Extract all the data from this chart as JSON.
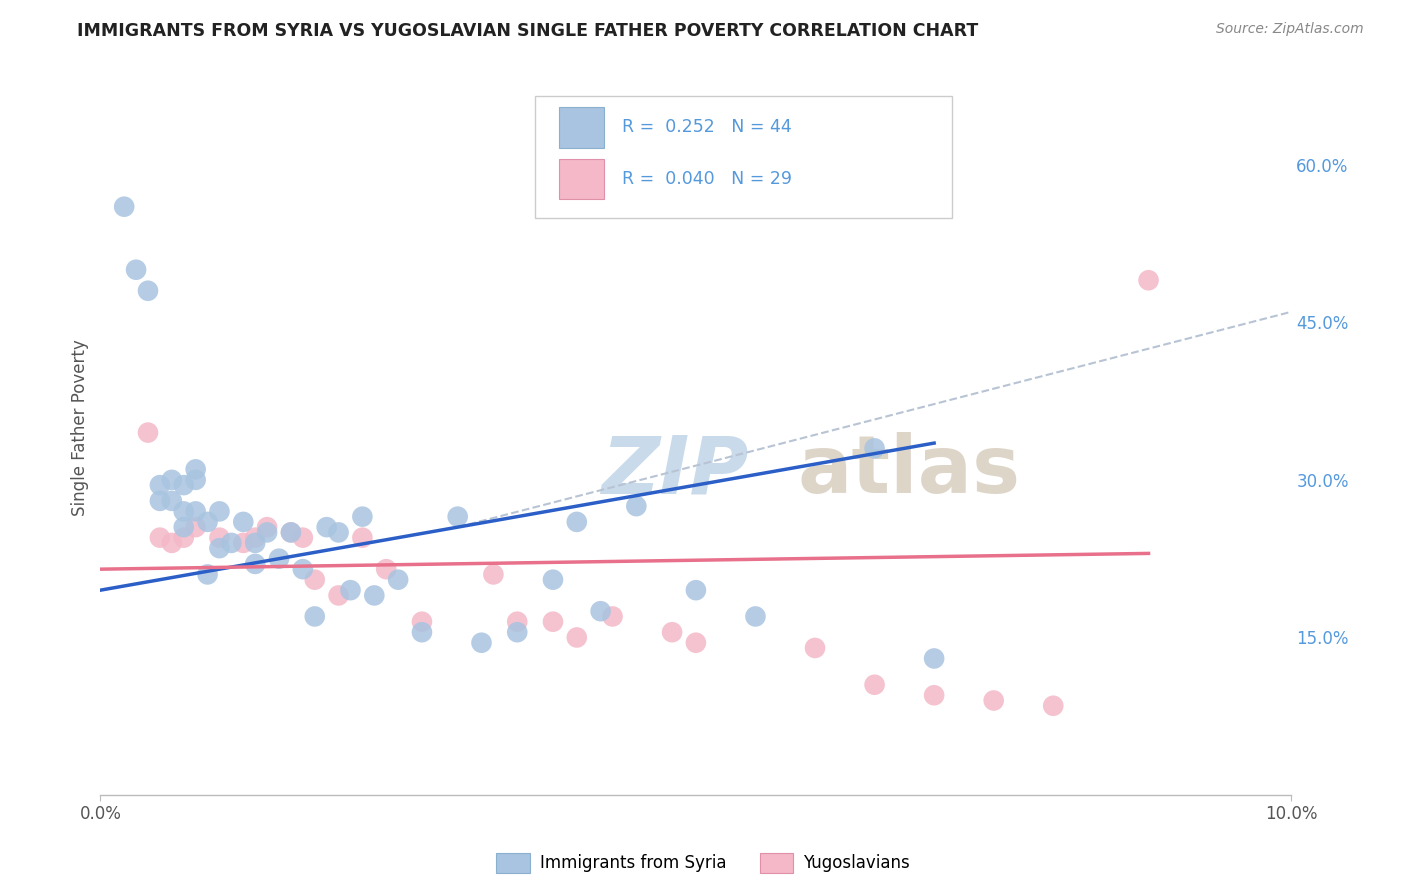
{
  "title": "IMMIGRANTS FROM SYRIA VS YUGOSLAVIAN SINGLE FATHER POVERTY CORRELATION CHART",
  "source": "Source: ZipAtlas.com",
  "ylabel": "Single Father Poverty",
  "xlim": [
    0.0,
    0.1
  ],
  "ylim": [
    0.0,
    0.7
  ],
  "x_tick_positions": [
    0.0,
    0.1
  ],
  "x_tick_labels": [
    "0.0%",
    "10.0%"
  ],
  "y_ticks_right": [
    0.15,
    0.3,
    0.45,
    0.6
  ],
  "y_tick_labels_right": [
    "15.0%",
    "30.0%",
    "45.0%",
    "60.0%"
  ],
  "legend_labels": [
    "Immigrants from Syria",
    "Yugoslavians"
  ],
  "R_syria": 0.252,
  "N_syria": 44,
  "R_yugo": 0.04,
  "N_yugo": 29,
  "syria_color": "#a8c4e0",
  "yugo_color": "#f4b8c8",
  "syria_line_color": "#2b5fc7",
  "yugo_line_color": "#e8708a",
  "dashed_line_color": "#b8c4d4",
  "watermark_zip_color": "#c0d4e8",
  "watermark_atlas_color": "#d4c8b8",
  "background_color": "#ffffff",
  "grid_color": "#d8dce8",
  "title_color": "#222222",
  "source_color": "#888888",
  "ylabel_color": "#555555",
  "tick_label_color": "#555555",
  "right_tick_color": "#5599dd",
  "syria_scatter_x": [
    0.002,
    0.003,
    0.004,
    0.005,
    0.005,
    0.006,
    0.006,
    0.007,
    0.007,
    0.007,
    0.008,
    0.008,
    0.008,
    0.009,
    0.009,
    0.01,
    0.01,
    0.011,
    0.012,
    0.013,
    0.013,
    0.014,
    0.015,
    0.016,
    0.017,
    0.018,
    0.019,
    0.02,
    0.021,
    0.022,
    0.023,
    0.025,
    0.027,
    0.03,
    0.032,
    0.035,
    0.038,
    0.04,
    0.042,
    0.045,
    0.05,
    0.055,
    0.065,
    0.07
  ],
  "syria_scatter_y": [
    0.56,
    0.5,
    0.48,
    0.295,
    0.28,
    0.3,
    0.28,
    0.295,
    0.27,
    0.255,
    0.31,
    0.3,
    0.27,
    0.26,
    0.21,
    0.27,
    0.235,
    0.24,
    0.26,
    0.24,
    0.22,
    0.25,
    0.225,
    0.25,
    0.215,
    0.17,
    0.255,
    0.25,
    0.195,
    0.265,
    0.19,
    0.205,
    0.155,
    0.265,
    0.145,
    0.155,
    0.205,
    0.26,
    0.175,
    0.275,
    0.195,
    0.17,
    0.33,
    0.13
  ],
  "yugo_scatter_x": [
    0.004,
    0.005,
    0.006,
    0.007,
    0.008,
    0.01,
    0.012,
    0.013,
    0.014,
    0.016,
    0.017,
    0.018,
    0.02,
    0.022,
    0.024,
    0.027,
    0.033,
    0.035,
    0.038,
    0.04,
    0.043,
    0.048,
    0.05,
    0.06,
    0.065,
    0.07,
    0.075,
    0.08,
    0.088
  ],
  "yugo_scatter_y": [
    0.345,
    0.245,
    0.24,
    0.245,
    0.255,
    0.245,
    0.24,
    0.245,
    0.255,
    0.25,
    0.245,
    0.205,
    0.19,
    0.245,
    0.215,
    0.165,
    0.21,
    0.165,
    0.165,
    0.15,
    0.17,
    0.155,
    0.145,
    0.14,
    0.105,
    0.095,
    0.09,
    0.085,
    0.49
  ],
  "syria_line_x": [
    0.0,
    0.07
  ],
  "syria_line_y": [
    0.195,
    0.335
  ],
  "yugo_line_x": [
    0.0,
    0.088
  ],
  "yugo_line_y": [
    0.215,
    0.23
  ],
  "dashed_line_x": [
    0.03,
    0.1
  ],
  "dashed_line_y": [
    0.255,
    0.46
  ]
}
